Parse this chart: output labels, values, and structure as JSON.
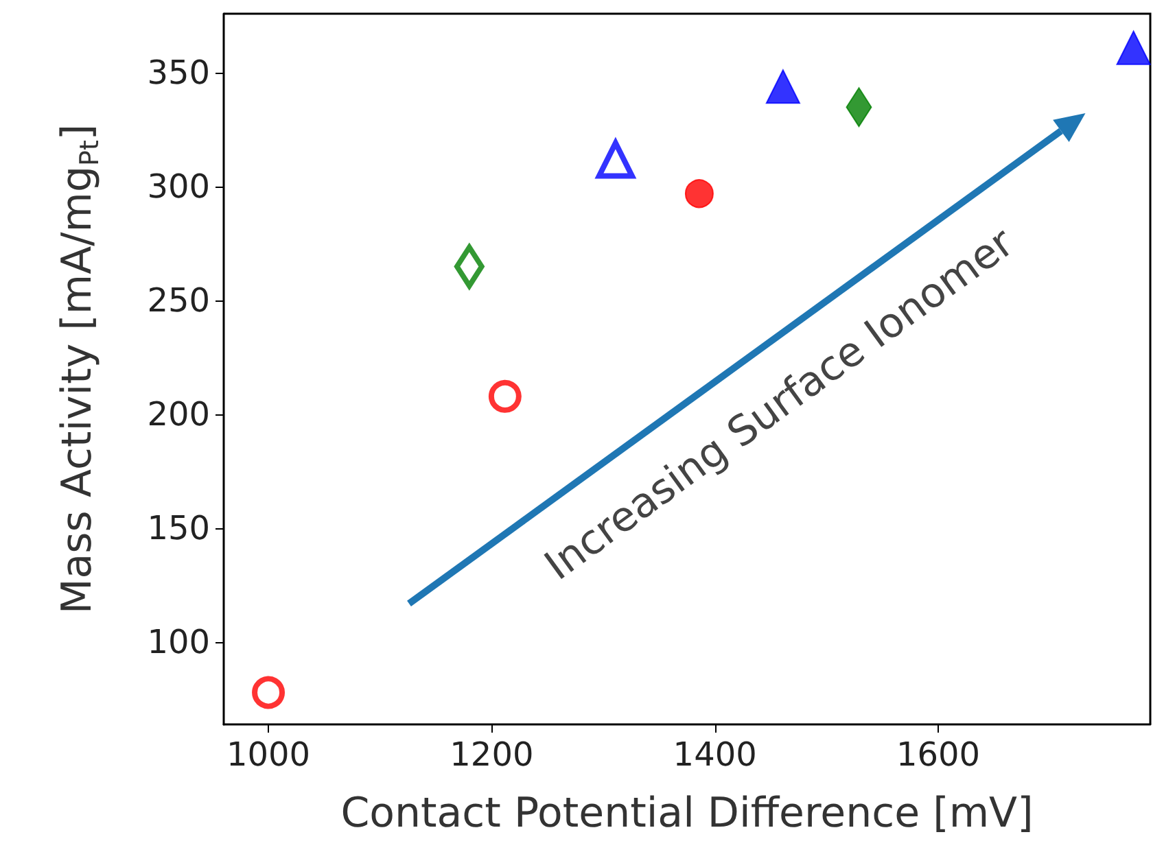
{
  "chart_data": {
    "type": "scatter",
    "xlabel": "Contact Potential Difference [mV]",
    "ylabel": "Mass Activity [mA/mg$_{Pt}$]",
    "annotations": [
      "Increasing Surface Ionomer"
    ],
    "xlim": [
      960,
      1790
    ],
    "xticks": [
      1000,
      1200,
      1400,
      1600
    ],
    "ylim": [
      64,
      376
    ],
    "yticks": [
      100,
      150,
      200,
      250,
      300,
      350
    ],
    "grid": false,
    "series": [
      {
        "color": "#ff0000",
        "marker": "circle-open",
        "x": [
          1000,
          1212
        ],
        "values": [
          78,
          208
        ]
      },
      {
        "color": "#008000",
        "marker": "diamond-open",
        "x": [
          1180
        ],
        "values": [
          265
        ]
      },
      {
        "color": "#0000ff",
        "marker": "triangle-open",
        "x": [
          1311
        ],
        "values": [
          312
        ]
      },
      {
        "color": "#ff0000",
        "marker": "circle",
        "x": [
          1386
        ],
        "values": [
          297
        ]
      },
      {
        "color": "#0000ff",
        "marker": "triangle",
        "x": [
          1461
        ],
        "values": [
          344
        ]
      },
      {
        "color": "#008000",
        "marker": "diamond",
        "x": [
          1529
        ],
        "values": [
          335
        ]
      },
      {
        "color": "#0000ff",
        "marker": "triangle",
        "x": [
          1775
        ],
        "values": [
          361
        ]
      }
    ]
  }
}
